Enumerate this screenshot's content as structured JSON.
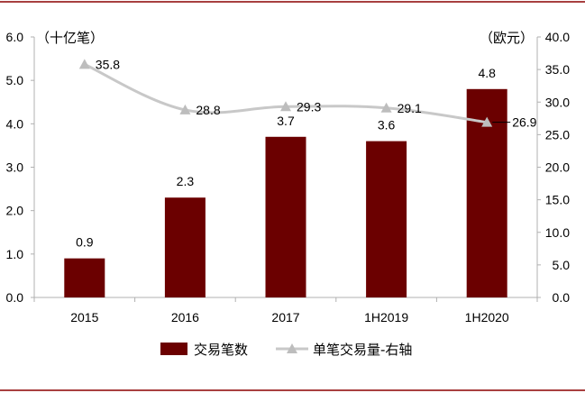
{
  "chart_data": {
    "type": "bar+line",
    "categories": [
      "2015",
      "2016",
      "2017",
      "1H2019",
      "1H2020"
    ],
    "series": [
      {
        "name": "交易笔数",
        "type": "bar",
        "axis": "left",
        "color": "#6B0000",
        "values": [
          0.9,
          2.3,
          3.7,
          3.6,
          4.8
        ],
        "labels": [
          "0.9",
          "2.3",
          "3.7",
          "3.6",
          "4.8"
        ]
      },
      {
        "name": "单笔交易量-右轴",
        "type": "line",
        "axis": "right",
        "color": "#C8C8C8",
        "marker": "triangle",
        "values": [
          35.8,
          28.8,
          29.3,
          29.1,
          26.9
        ],
        "labels": [
          "35.8",
          "28.8",
          "29.3",
          "29.1",
          "26.9"
        ]
      }
    ],
    "y_left": {
      "unit": "（十亿笔）",
      "ylim": [
        0,
        6
      ],
      "ticks": [
        "0.0",
        "1.0",
        "2.0",
        "3.0",
        "4.0",
        "5.0",
        "6.0"
      ]
    },
    "y_right": {
      "unit": "（欧元）",
      "ylim": [
        0,
        40
      ],
      "ticks": [
        "0.0",
        "5.0",
        "10.0",
        "15.0",
        "20.0",
        "25.0",
        "30.0",
        "35.0",
        "40.0"
      ]
    },
    "legend": {
      "position": "bottom",
      "items": [
        "交易笔数",
        "单笔交易量-右轴"
      ]
    },
    "frame_color": "#8B0000"
  }
}
